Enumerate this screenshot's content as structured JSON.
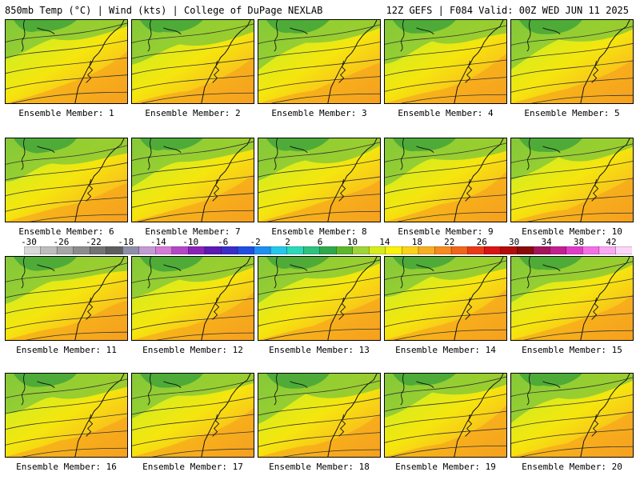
{
  "header": {
    "left": "850mb Temp (°C) | Wind (kts) | College of DuPage NEXLAB",
    "right": "12Z GEFS | F084 Valid: 00Z WED JUN 11 2025"
  },
  "label_prefix": "Ensemble Member: ",
  "members": [
    "1",
    "2",
    "3",
    "4",
    "5",
    "6",
    "7",
    "8",
    "9",
    "10",
    "11",
    "12",
    "13",
    "14",
    "15",
    "16",
    "17",
    "18",
    "19",
    "20"
  ],
  "colorbar": {
    "labels": [
      "-30",
      "-26",
      "-22",
      "-18",
      "-14",
      "-10",
      "-6",
      "-2",
      "2",
      "6",
      "10",
      "14",
      "18",
      "22",
      "26",
      "30",
      "34",
      "38",
      "42"
    ],
    "colors": [
      "#d9d9d9",
      "#bdbdbd",
      "#a6a6a6",
      "#8c8c8c",
      "#737373",
      "#5e5e5e",
      "#8e8ea8",
      "#c39bd3",
      "#d57ad9",
      "#b347c7",
      "#8a22b8",
      "#5b1ab3",
      "#3b2dc9",
      "#1f4fe0",
      "#1f8ff0",
      "#23c8e8",
      "#2bd9b8",
      "#2ec27e",
      "#30a84a",
      "#5cb82a",
      "#9fd33a",
      "#d6ec1c",
      "#fbf20a",
      "#f9d21a",
      "#f7ae22",
      "#f58a20",
      "#f0651c",
      "#e83a17",
      "#d81414",
      "#b20d0d",
      "#8a0a0a",
      "#a3145c",
      "#c21f8f",
      "#e03cc8",
      "#f46fe6",
      "#f9a8f2",
      "#fcd5f8"
    ]
  }
}
